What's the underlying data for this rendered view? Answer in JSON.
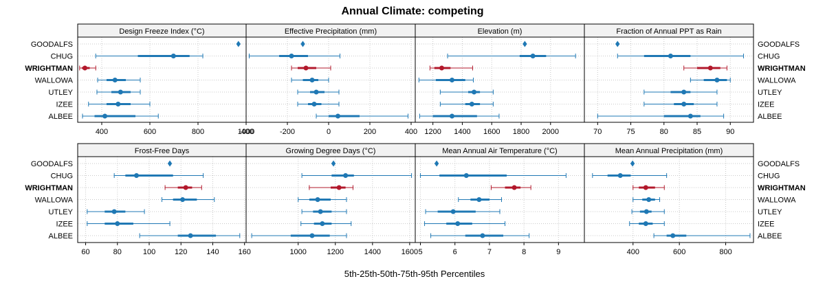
{
  "chart_data": {
    "type": "dot-interval",
    "title": "Annual Climate: competing",
    "xlabel": "5th-25th-50th-75th-95th Percentiles",
    "sites": [
      "GOODALFS",
      "CHUG",
      "WRIGHTMAN",
      "WALLOWA",
      "UTLEY",
      "IZEE",
      "ALBEE"
    ],
    "highlight_site": "WRIGHTMAN",
    "colors": {
      "normal": "#1f78b4",
      "highlight": "#b2182b",
      "grid": "#c8c8c8",
      "strip": "#f2f2f2"
    },
    "panels": [
      {
        "title": "Design Freeze Index (°C)",
        "xlim": [
          300,
          1000
        ],
        "ticks": [
          400,
          600,
          800,
          1000
        ],
        "tick_labels": [
          "400",
          "600",
          "800",
          "1000"
        ],
        "data": [
          [
            968,
            968,
            968,
            968,
            968
          ],
          [
            375,
            550,
            698,
            765,
            820
          ],
          [
            308,
            318,
            330,
            350,
            375
          ],
          [
            383,
            420,
            455,
            500,
            560
          ],
          [
            380,
            440,
            478,
            520,
            560
          ],
          [
            345,
            420,
            468,
            520,
            600
          ],
          [
            320,
            370,
            413,
            540,
            635
          ]
        ]
      },
      {
        "title": "Effective Precipitation (mm)",
        "xlim": [
          -400,
          420
        ],
        "ticks": [
          -400,
          -200,
          0,
          200,
          400
        ],
        "tick_labels": [
          "-400",
          "-200",
          "0",
          "200",
          "400"
        ],
        "data": [
          [
            -125,
            -125,
            -125,
            -125,
            -125
          ],
          [
            -385,
            -240,
            -180,
            -100,
            55
          ],
          [
            -180,
            -150,
            -110,
            -60,
            10
          ],
          [
            -180,
            -125,
            -80,
            -50,
            0
          ],
          [
            -150,
            -90,
            -60,
            -20,
            50
          ],
          [
            -150,
            -100,
            -70,
            -35,
            50
          ],
          [
            -60,
            0,
            45,
            150,
            385
          ]
        ]
      },
      {
        "title": "Elevation (m)",
        "xlim": [
          1080,
          2230
        ],
        "ticks": [
          1200,
          1400,
          1600,
          1800,
          2000
        ],
        "tick_labels": [
          "1200",
          "1400",
          "1600",
          "1800",
          "2000"
        ],
        "data": [
          [
            1825,
            1825,
            1825,
            1825,
            1825
          ],
          [
            1300,
            1790,
            1880,
            1970,
            2170
          ],
          [
            1180,
            1210,
            1260,
            1320,
            1470
          ],
          [
            1105,
            1220,
            1330,
            1420,
            1475
          ],
          [
            1250,
            1440,
            1480,
            1520,
            1610
          ],
          [
            1250,
            1420,
            1465,
            1520,
            1610
          ],
          [
            1110,
            1200,
            1330,
            1500,
            1650
          ]
        ]
      },
      {
        "title": "Fraction of Annual PPT as Rain",
        "xlim": [
          68,
          93.5
        ],
        "ticks": [
          70,
          75,
          80,
          85,
          90
        ],
        "tick_labels": [
          "70",
          "75",
          "80",
          "85",
          "90"
        ],
        "data": [
          [
            73,
            73,
            73,
            73,
            73
          ],
          [
            73,
            77,
            81,
            84,
            92
          ],
          [
            83,
            85,
            87,
            88.5,
            89.5
          ],
          [
            84,
            86,
            88,
            89.5,
            90
          ],
          [
            77,
            81,
            83,
            84,
            88
          ],
          [
            77,
            81.5,
            83,
            84.5,
            88
          ],
          [
            70,
            80,
            84,
            85.5,
            89
          ]
        ]
      },
      {
        "title": "Frost-Free Days",
        "xlim": [
          55,
          161
        ],
        "ticks": [
          60,
          80,
          100,
          120,
          140,
          160
        ],
        "tick_labels": [
          "60",
          "80",
          "100",
          "120",
          "140",
          "160"
        ],
        "data": [
          [
            113,
            113,
            113,
            113,
            113
          ],
          [
            78,
            85,
            92,
            115,
            134
          ],
          [
            110,
            118,
            123,
            127,
            133
          ],
          [
            108,
            115,
            121,
            130,
            141
          ],
          [
            61,
            72,
            78,
            85,
            97
          ],
          [
            61,
            72,
            80,
            90,
            113
          ],
          [
            94,
            118,
            126,
            142,
            157
          ]
        ]
      },
      {
        "title": "Growing Degree Days (°C)",
        "xlim": [
          720,
          1630
        ],
        "ticks": [
          1000,
          1200,
          1400,
          1600
        ],
        "tick_labels": [
          "1000",
          "1200",
          "1400",
          "1600"
        ],
        "data": [
          [
            1190,
            1190,
            1190,
            1190,
            1190
          ],
          [
            1020,
            1180,
            1255,
            1300,
            1610
          ],
          [
            1060,
            1175,
            1220,
            1255,
            1295
          ],
          [
            1000,
            1060,
            1105,
            1175,
            1260
          ],
          [
            1020,
            1080,
            1120,
            1180,
            1260
          ],
          [
            1015,
            1085,
            1130,
            1180,
            1285
          ],
          [
            750,
            960,
            1075,
            1170,
            1260
          ]
        ]
      },
      {
        "title": "Mean Annual Air Temperature (°C)",
        "xlim": [
          4.85,
          9.75
        ],
        "ticks": [
          5,
          6,
          7,
          8,
          9
        ],
        "tick_labels": [
          "5",
          "6",
          "7",
          "8",
          "9"
        ],
        "data": [
          [
            5.47,
            5.47,
            5.47,
            5.47,
            5.47
          ],
          [
            5.0,
            5.55,
            6.33,
            7.5,
            9.22
          ],
          [
            7.05,
            7.45,
            7.72,
            7.9,
            8.2
          ],
          [
            6.1,
            6.45,
            6.7,
            7.0,
            7.35
          ],
          [
            5.15,
            5.5,
            5.95,
            6.6,
            7.3
          ],
          [
            5.12,
            5.75,
            6.08,
            6.5,
            7.45
          ],
          [
            5.3,
            6.3,
            6.8,
            7.4,
            8.15
          ]
        ]
      },
      {
        "title": "Mean Annual Precipitation (mm)",
        "xlim": [
          190,
          920
        ],
        "ticks": [
          400,
          600,
          800
        ],
        "tick_labels": [
          "400",
          "600",
          "800"
        ],
        "data": [
          [
            398,
            398,
            398,
            398,
            398
          ],
          [
            225,
            290,
            345,
            390,
            545
          ],
          [
            400,
            425,
            455,
            495,
            535
          ],
          [
            400,
            440,
            468,
            495,
            515
          ],
          [
            395,
            430,
            458,
            480,
            535
          ],
          [
            385,
            425,
            455,
            485,
            535
          ],
          [
            490,
            545,
            572,
            630,
            905
          ]
        ]
      }
    ]
  }
}
